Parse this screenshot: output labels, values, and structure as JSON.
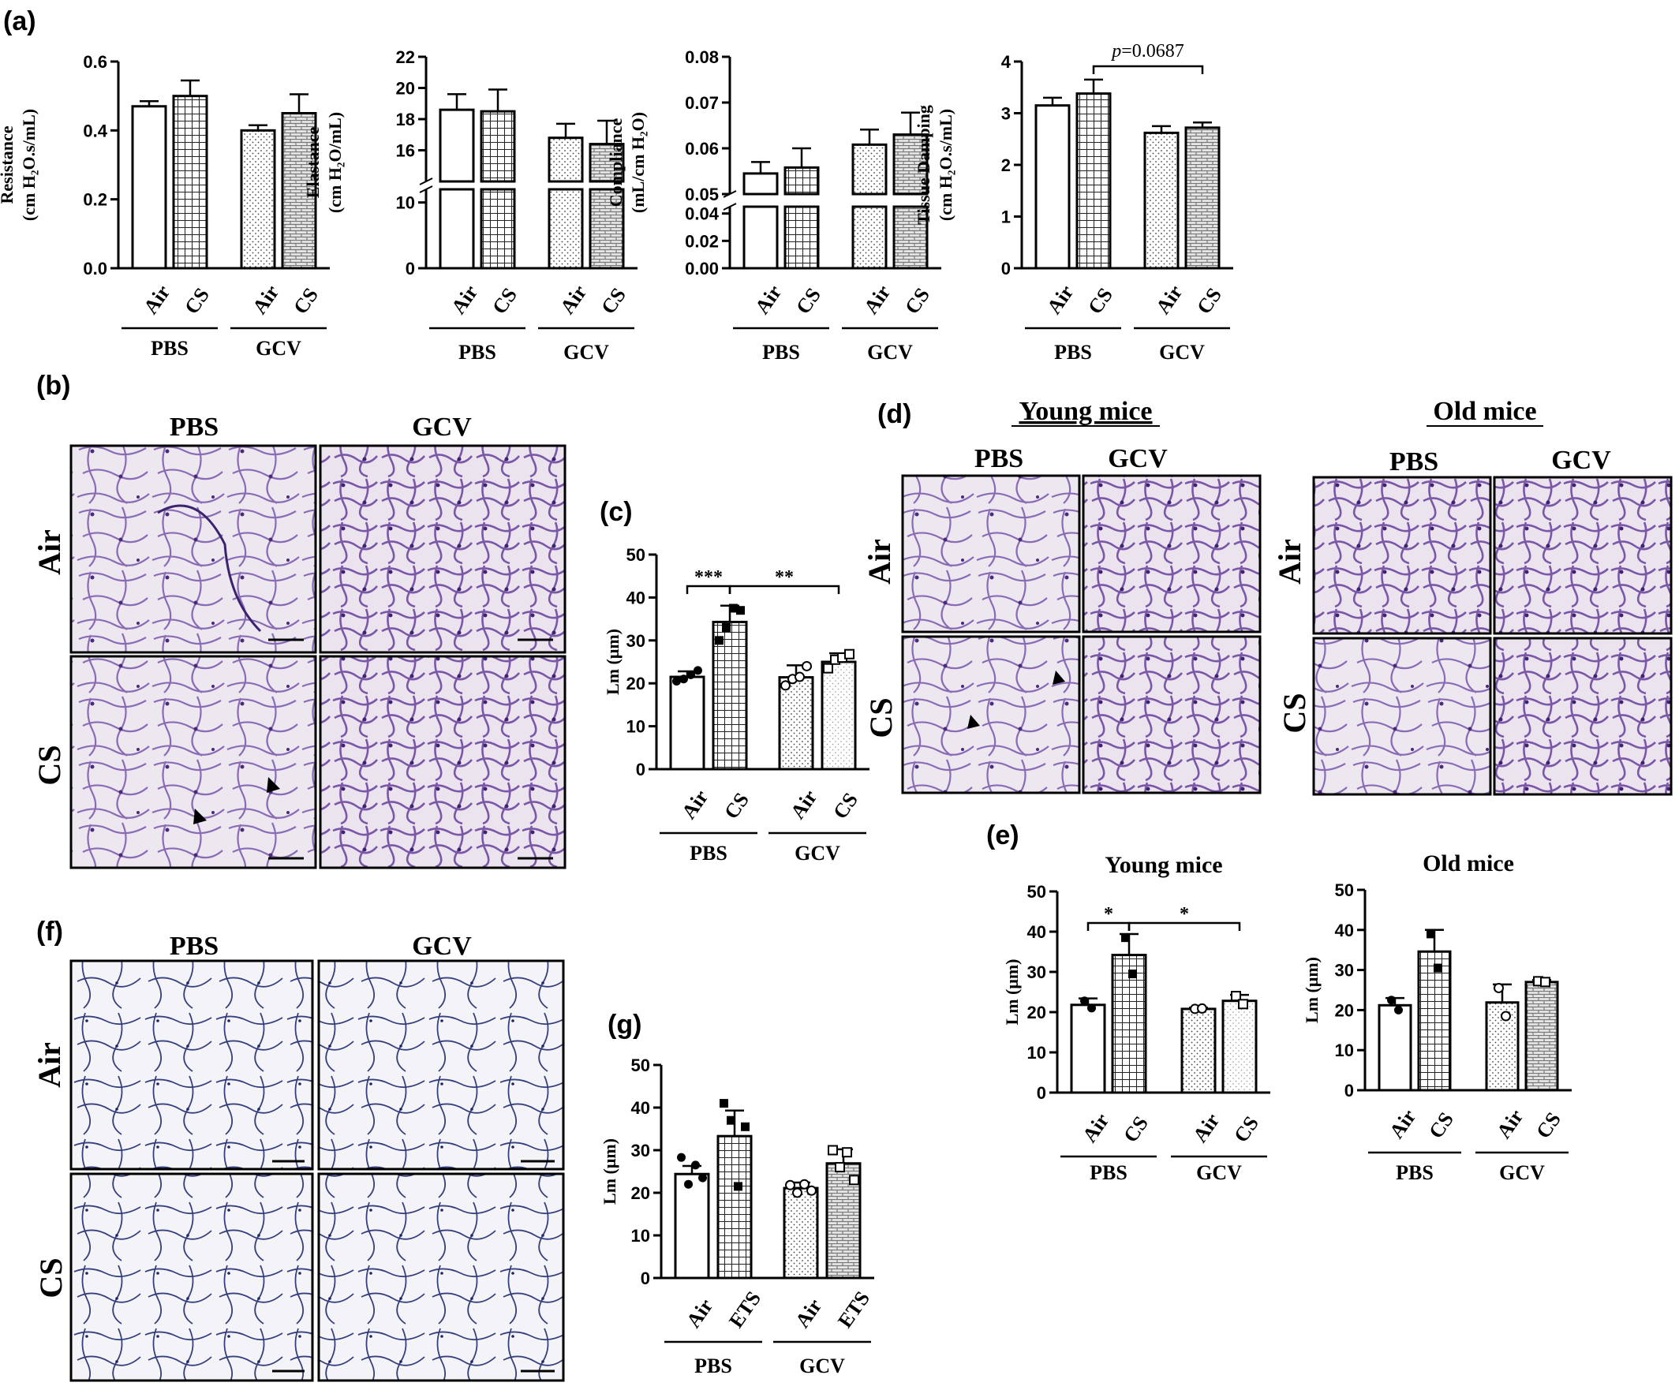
{
  "panels": {
    "a": "(a)",
    "b": "(b)",
    "c": "(c)",
    "d": "(d)",
    "e": "(e)",
    "f": "(f)",
    "g": "(g)"
  },
  "colors": {
    "ink": "#000000",
    "tissue_bg_b": "#ece6f0",
    "tissue_stain": "#7b5aa6",
    "tissue_bg_f": "#f3f3f8",
    "tissue_stain_f": "#2e3a7a"
  },
  "histology": {
    "b": {
      "cols": [
        "PBS",
        "GCV"
      ],
      "rows": [
        "Air",
        "CS"
      ]
    },
    "d": {
      "groups": [
        "Young mice",
        "Old mice"
      ],
      "cols": [
        "PBS",
        "GCV"
      ],
      "rows": [
        "Air",
        "CS"
      ]
    },
    "f": {
      "cols": [
        "PBS",
        "GCV"
      ],
      "rows": [
        "Air",
        "CS"
      ]
    }
  },
  "chart_data": [
    {
      "id": "a1",
      "type": "bar",
      "ylabel": [
        "Resistance",
        "(cm H₂O.s/mL)"
      ],
      "ylim": [
        0,
        0.6
      ],
      "yticks": [
        "0.0",
        "0.2",
        "0.4",
        "0.6"
      ],
      "ytick_values": [
        0,
        0.2,
        0.4,
        0.6
      ],
      "categories": [
        "Air",
        "CS",
        "Air",
        "CS"
      ],
      "groups": [
        "PBS",
        "GCV"
      ],
      "values": [
        0.47,
        0.5,
        0.4,
        0.45
      ],
      "errors": [
        0.015,
        0.045,
        0.015,
        0.055
      ],
      "patterns": [
        "white",
        "grid",
        "dots",
        "brick"
      ]
    },
    {
      "id": "a2",
      "type": "bar",
      "ylabel": [
        "Elastance",
        "(cm H₂O/mL)"
      ],
      "axis_break": true,
      "ylim_lower": [
        0,
        12
      ],
      "ylim_upper": [
        14,
        22
      ],
      "yticks": [
        "0",
        "10",
        "16",
        "18",
        "20",
        "22"
      ],
      "ytick_values": [
        0,
        10,
        16,
        18,
        20,
        22
      ],
      "categories": [
        "Air",
        "CS",
        "Air",
        "CS"
      ],
      "groups": [
        "PBS",
        "GCV"
      ],
      "values": [
        18.6,
        18.5,
        16.8,
        16.4
      ],
      "errors": [
        1.0,
        1.4,
        0.9,
        1.5
      ],
      "patterns": [
        "white",
        "grid",
        "dots",
        "brick"
      ]
    },
    {
      "id": "a3",
      "type": "bar",
      "ylabel": [
        "Compliance",
        "(mL/cm H₂O)"
      ],
      "axis_break": true,
      "ylim_lower": [
        0,
        0.045
      ],
      "ylim_upper": [
        0.05,
        0.08
      ],
      "yticks": [
        "0.00",
        "0.02",
        "0.04",
        "0.05",
        "0.06",
        "0.07",
        "0.08"
      ],
      "ytick_values": [
        0,
        0.02,
        0.04,
        0.05,
        0.06,
        0.07,
        0.08
      ],
      "categories": [
        "Air",
        "CS",
        "Air",
        "CS"
      ],
      "groups": [
        "PBS",
        "GCV"
      ],
      "values": [
        0.0545,
        0.0558,
        0.0608,
        0.063
      ],
      "errors": [
        0.0025,
        0.0042,
        0.0033,
        0.0048
      ],
      "patterns": [
        "white",
        "grid",
        "dots",
        "brick"
      ]
    },
    {
      "id": "a4",
      "type": "bar",
      "ylabel": [
        "Tissue Damping",
        "(cm H₂O.s/mL)"
      ],
      "ylim": [
        0,
        4
      ],
      "yticks": [
        "0",
        "1",
        "2",
        "3",
        "4"
      ],
      "ytick_values": [
        0,
        1,
        2,
        3,
        4
      ],
      "categories": [
        "Air",
        "CS",
        "Air",
        "CS"
      ],
      "groups": [
        "PBS",
        "GCV"
      ],
      "values": [
        3.15,
        3.38,
        2.62,
        2.72
      ],
      "errors": [
        0.15,
        0.27,
        0.13,
        0.1
      ],
      "patterns": [
        "white",
        "grid",
        "dots",
        "brick"
      ],
      "annotation": {
        "text": "p",
        "value": "=0.0687",
        "from": 1,
        "to": 3
      }
    },
    {
      "id": "c",
      "type": "bar",
      "ylabel": [
        "Lm (μm)"
      ],
      "ylim": [
        0,
        50
      ],
      "yticks": [
        "0",
        "10",
        "20",
        "30",
        "40",
        "50"
      ],
      "ytick_values": [
        0,
        10,
        20,
        30,
        40,
        50
      ],
      "categories": [
        "Air",
        "CS",
        "Air",
        "CS"
      ],
      "groups": [
        "PBS",
        "GCV"
      ],
      "values": [
        21.5,
        34.3,
        21.4,
        25.0
      ],
      "errors": [
        1.3,
        3.8,
        2.8,
        2.0
      ],
      "points": [
        [
          20.5,
          21.0,
          22.0,
          23.0
        ],
        [
          30.0,
          33.0,
          37.5,
          37.0
        ],
        [
          19.5,
          21.0,
          21.5,
          24.0
        ],
        [
          23.5,
          25.5,
          26.0,
          26.8
        ]
      ],
      "patterns": [
        "white",
        "grid",
        "dots",
        "dots-light"
      ],
      "significance": [
        {
          "text": "***",
          "from": 0,
          "to": 1
        },
        {
          "text": "**",
          "from": 1,
          "to": 3
        }
      ]
    },
    {
      "id": "e1",
      "type": "bar",
      "title": "Young mice",
      "ylabel": [
        "Lm (μm)"
      ],
      "ylim": [
        0,
        50
      ],
      "yticks": [
        "0",
        "10",
        "20",
        "30",
        "40",
        "50"
      ],
      "ytick_values": [
        0,
        10,
        20,
        30,
        40,
        50
      ],
      "categories": [
        "Air",
        "CS",
        "Air",
        "CS"
      ],
      "groups": [
        "PBS",
        "GCV"
      ],
      "values": [
        21.8,
        34.2,
        20.8,
        22.8
      ],
      "errors": [
        1.6,
        5.2,
        0.3,
        1.5
      ],
      "points": [
        [
          22.8,
          21.0
        ],
        [
          38.5,
          29.5
        ],
        [
          20.8,
          20.9
        ],
        [
          24.0,
          22.0
        ]
      ],
      "patterns": [
        "white",
        "grid",
        "dots",
        "dots-light"
      ],
      "significance": [
        {
          "text": "*",
          "from": 0,
          "to": 1
        },
        {
          "text": "*",
          "from": 1,
          "to": 3
        }
      ]
    },
    {
      "id": "e2",
      "type": "bar",
      "title": "Old mice",
      "ylabel": [
        "Lm (μm)"
      ],
      "ylim": [
        0,
        50
      ],
      "yticks": [
        "0",
        "10",
        "20",
        "30",
        "40",
        "50"
      ],
      "ytick_values": [
        0,
        10,
        20,
        30,
        40,
        50
      ],
      "categories": [
        "Air",
        "CS",
        "Air",
        "CS"
      ],
      "groups": [
        "PBS",
        "GCV"
      ],
      "values": [
        21.2,
        34.6,
        21.9,
        27.0
      ],
      "errors": [
        1.8,
        5.4,
        4.5,
        0.5
      ],
      "points": [
        [
          22.5,
          20.0
        ],
        [
          39.0,
          30.5
        ],
        [
          25.5,
          18.5
        ],
        [
          27.2,
          27.0
        ]
      ],
      "patterns": [
        "white",
        "grid",
        "dots",
        "brick"
      ]
    },
    {
      "id": "g",
      "type": "bar",
      "ylabel": [
        "Lm (μm)"
      ],
      "ylim": [
        0,
        50
      ],
      "yticks": [
        "0",
        "10",
        "20",
        "30",
        "40",
        "50"
      ],
      "ytick_values": [
        0,
        10,
        20,
        30,
        40,
        50
      ],
      "categories": [
        "Air",
        "ETS",
        "Air",
        "ETS"
      ],
      "groups": [
        "PBS",
        "GCV"
      ],
      "values": [
        24.4,
        33.3,
        21.1,
        26.9
      ],
      "errors": [
        1.9,
        6.0,
        1.3,
        3.3
      ],
      "points": [
        [
          28.3,
          22.0,
          26.5,
          23.5
        ],
        [
          41.0,
          37.0,
          21.5,
          35.5
        ],
        [
          21.8,
          20.0,
          22.0,
          20.5
        ],
        [
          30.0,
          26.0,
          29.5,
          23.0
        ]
      ],
      "patterns": [
        "white",
        "grid",
        "dots",
        "brick"
      ]
    }
  ]
}
